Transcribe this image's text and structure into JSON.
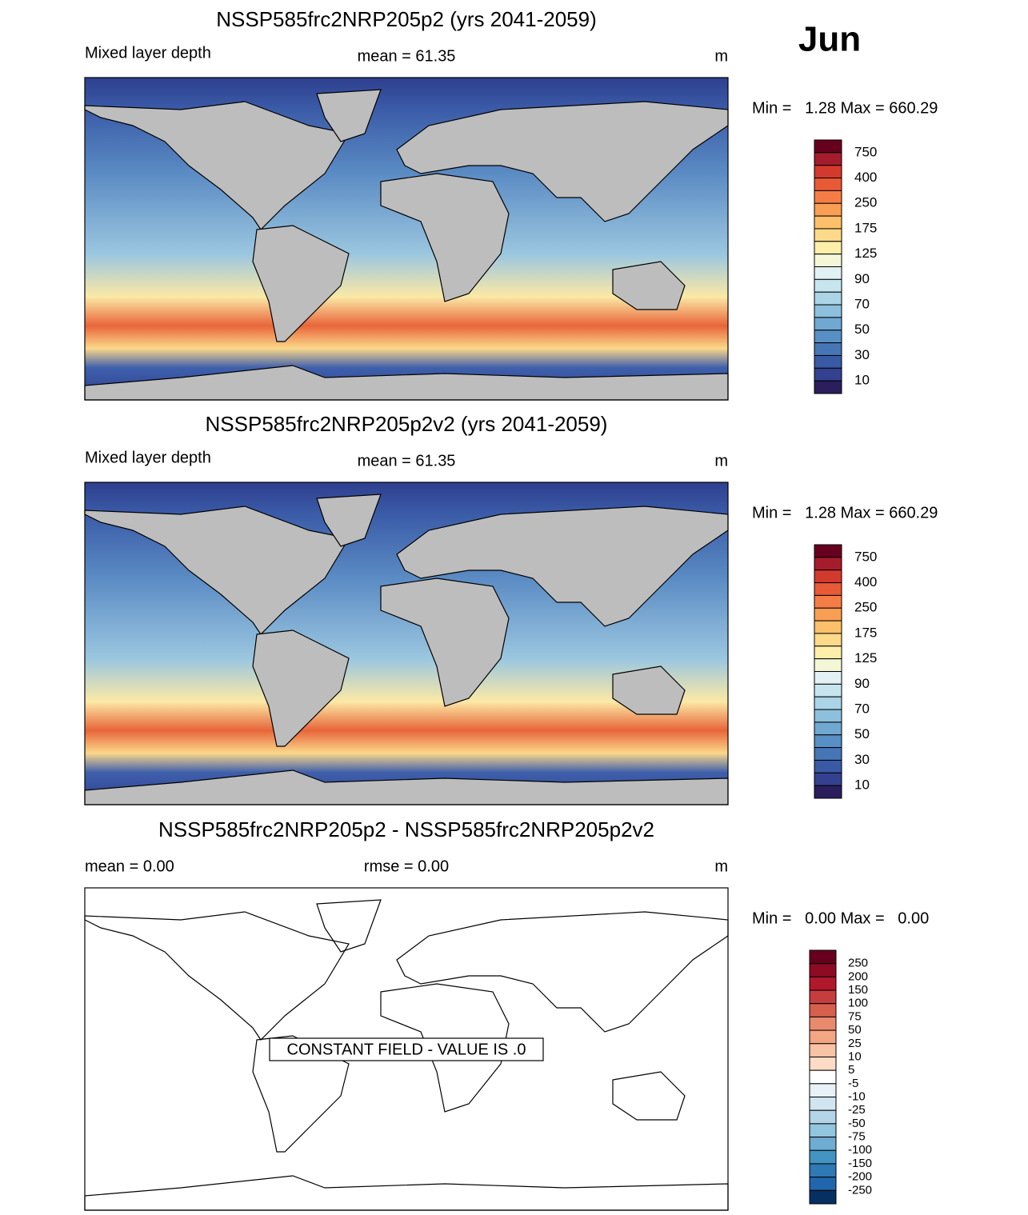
{
  "month": "Jun",
  "panels": [
    {
      "title": "NSSP585frc2NRP205p2 (yrs 2041-2059)",
      "left": "Mixed layer depth",
      "center": "mean =  61.35",
      "right": "m",
      "minmax": "Min =   1.28 Max = 660.29",
      "colorbar": {
        "labels": [
          "750",
          "400",
          "250",
          "175",
          "125",
          "90",
          "70",
          "50",
          "30",
          "10"
        ],
        "colors": [
          "#67001f",
          "#a51d2d",
          "#d33a2e",
          "#e85a35",
          "#f57d45",
          "#f99e55",
          "#fcbf6a",
          "#fdd98a",
          "#fdeeaa",
          "#f3f7d7",
          "#e2f1f3",
          "#c7e5ef",
          "#abd4e6",
          "#8dc0dc",
          "#71a8d1",
          "#588fc4",
          "#4676b6",
          "#3a5aa6",
          "#334190",
          "#2a1e5c"
        ]
      }
    },
    {
      "title": "NSSP585frc2NRP205p2v2 (yrs 2041-2059)",
      "left": "Mixed layer depth",
      "center": "mean =  61.35",
      "right": "m",
      "minmax": "Min =   1.28 Max = 660.29",
      "colorbar": {
        "labels": [
          "750",
          "400",
          "250",
          "175",
          "125",
          "90",
          "70",
          "50",
          "30",
          "10"
        ],
        "colors": [
          "#67001f",
          "#a51d2d",
          "#d33a2e",
          "#e85a35",
          "#f57d45",
          "#f99e55",
          "#fcbf6a",
          "#fdd98a",
          "#fdeeaa",
          "#f3f7d7",
          "#e2f1f3",
          "#c7e5ef",
          "#abd4e6",
          "#8dc0dc",
          "#71a8d1",
          "#588fc4",
          "#4676b6",
          "#3a5aa6",
          "#334190",
          "#2a1e5c"
        ]
      }
    },
    {
      "title": "NSSP585frc2NRP205p2 - NSSP585frc2NRP205p2v2",
      "left": "mean =   0.00",
      "center": "rmse =   0.00",
      "right": "m",
      "minmax": "Min =   0.00 Max =   0.00",
      "annotation": "CONSTANT FIELD - VALUE IS .0",
      "colorbar": {
        "labels": [
          "250",
          "200",
          "150",
          "100",
          "75",
          "50",
          "25",
          "10",
          "5",
          "-5",
          "-10",
          "-25",
          "-50",
          "-75",
          "-100",
          "-150",
          "-200",
          "-250"
        ],
        "colors": [
          "#67001f",
          "#8e0b25",
          "#b2182b",
          "#c63d3e",
          "#d6604d",
          "#e98a6e",
          "#f4a582",
          "#f8c3a4",
          "#fddbc7",
          "#ffffff",
          "#e8f1f7",
          "#d1e5f0",
          "#b4d4e7",
          "#92c5de",
          "#6eacd1",
          "#4393c3",
          "#2f79b5",
          "#2166ac",
          "#053061"
        ]
      }
    }
  ]
}
